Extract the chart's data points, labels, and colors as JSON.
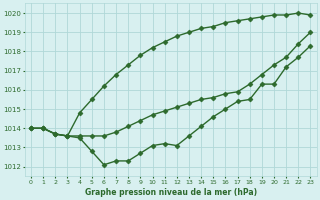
{
  "xlabel": "Graphe pression niveau de la mer (hPa)",
  "x": [
    0,
    1,
    2,
    3,
    4,
    5,
    6,
    7,
    8,
    9,
    10,
    11,
    12,
    13,
    14,
    15,
    16,
    17,
    18,
    19,
    20,
    21,
    22,
    23
  ],
  "line_top": [
    1014.0,
    1014.0,
    1013.7,
    1013.6,
    1014.8,
    1015.5,
    1016.2,
    1016.8,
    1017.3,
    1017.8,
    1018.2,
    1018.5,
    1018.8,
    1019.0,
    1019.2,
    1019.3,
    1019.5,
    1019.6,
    1019.7,
    1019.8,
    1019.9,
    1019.9,
    1020.0,
    1019.9
  ],
  "line_mid": [
    1014.0,
    1014.0,
    1013.7,
    1013.6,
    1013.6,
    1013.6,
    1013.6,
    1013.8,
    1014.1,
    1014.4,
    1014.7,
    1014.9,
    1015.1,
    1015.3,
    1015.5,
    1015.6,
    1015.8,
    1015.9,
    1016.3,
    1016.8,
    1017.3,
    1017.7,
    1018.4,
    1019.0
  ],
  "line_bot": [
    1014.0,
    1014.0,
    1013.7,
    1013.6,
    1013.5,
    1012.8,
    1012.1,
    1012.3,
    1012.3,
    1012.7,
    1013.1,
    1013.2,
    1013.1,
    1013.6,
    1014.1,
    1014.6,
    1015.0,
    1015.4,
    1015.5,
    1016.3,
    1016.3,
    1017.2,
    1017.7,
    1018.3
  ],
  "line_color": "#2d6a2d",
  "bg_color": "#d8f0f0",
  "grid_color": "#b0d8d8",
  "text_color": "#2d6a2d",
  "ylim": [
    1011.5,
    1020.5
  ],
  "yticks": [
    1012,
    1013,
    1014,
    1015,
    1016,
    1017,
    1018,
    1019,
    1020
  ],
  "xticks": [
    0,
    1,
    2,
    3,
    4,
    5,
    6,
    7,
    8,
    9,
    10,
    11,
    12,
    13,
    14,
    15,
    16,
    17,
    18,
    19,
    20,
    21,
    22,
    23
  ],
  "marker": "D",
  "markersize": 2.5,
  "linewidth": 1.0
}
